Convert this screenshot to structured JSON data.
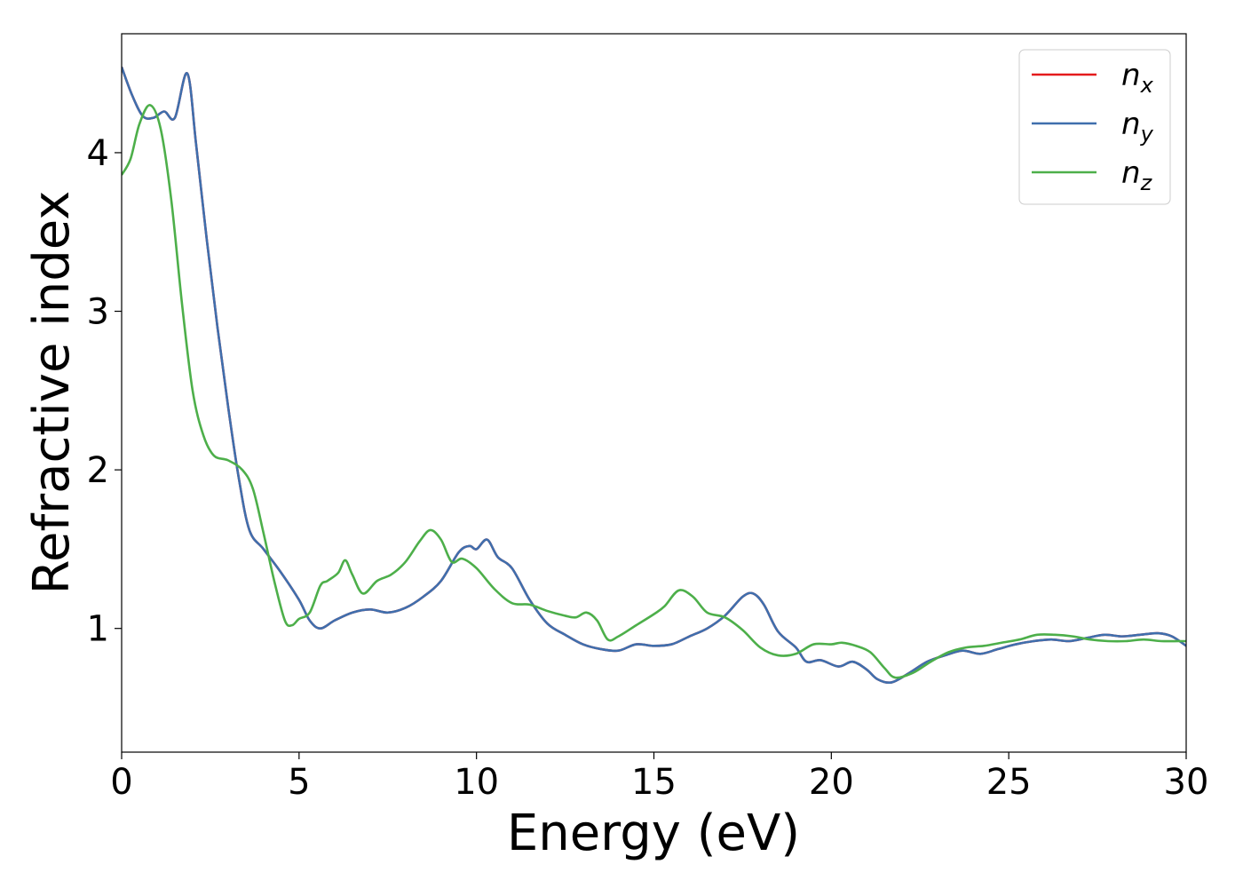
{
  "chart_data": {
    "type": "line",
    "xlabel": "Energy (eV)",
    "ylabel": "Refractive index",
    "xlim": [
      0,
      30
    ],
    "ylim": [
      0.22,
      4.75
    ],
    "xticks": [
      0,
      5,
      10,
      15,
      20,
      25,
      30
    ],
    "yticks": [
      1,
      2,
      3,
      4
    ],
    "grid": false,
    "legend_position": "top-right",
    "series": [
      {
        "name": "n_x",
        "legend_base": "n",
        "legend_sub": "x",
        "color": "#e41a1c",
        "x": [
          0,
          0.3,
          0.6,
          0.9,
          1.2,
          1.5,
          1.85,
          2.1,
          2.4,
          2.7,
          3.0,
          3.3,
          3.6,
          4.0,
          4.5,
          5.0,
          5.3,
          5.6,
          6.0,
          6.5,
          7.0,
          7.5,
          8.0,
          8.5,
          9.0,
          9.5,
          9.8,
          10.0,
          10.3,
          10.6,
          11.0,
          11.5,
          12.0,
          12.5,
          13.0,
          13.5,
          14.0,
          14.5,
          15.0,
          15.5,
          16.0,
          16.5,
          17.0,
          17.5,
          17.8,
          18.1,
          18.5,
          19.0,
          19.3,
          19.7,
          20.2,
          20.6,
          21.0,
          21.3,
          21.7,
          22.2,
          22.7,
          23.2,
          23.7,
          24.2,
          24.7,
          25.2,
          25.7,
          26.2,
          26.7,
          27.2,
          27.7,
          28.2,
          28.7,
          29.2,
          29.6,
          30.0
        ],
        "y": [
          4.54,
          4.36,
          4.23,
          4.22,
          4.26,
          4.22,
          4.5,
          4.05,
          3.45,
          2.9,
          2.4,
          1.95,
          1.62,
          1.5,
          1.35,
          1.18,
          1.05,
          1.0,
          1.05,
          1.1,
          1.12,
          1.1,
          1.13,
          1.2,
          1.3,
          1.48,
          1.52,
          1.5,
          1.56,
          1.45,
          1.38,
          1.18,
          1.03,
          0.96,
          0.9,
          0.87,
          0.86,
          0.9,
          0.89,
          0.9,
          0.95,
          1.0,
          1.08,
          1.2,
          1.22,
          1.15,
          0.98,
          0.88,
          0.79,
          0.8,
          0.76,
          0.79,
          0.74,
          0.68,
          0.66,
          0.72,
          0.79,
          0.83,
          0.86,
          0.84,
          0.87,
          0.9,
          0.92,
          0.93,
          0.92,
          0.94,
          0.96,
          0.95,
          0.96,
          0.97,
          0.95,
          0.89
        ]
      },
      {
        "name": "n_y",
        "legend_base": "n",
        "legend_sub": "y",
        "color": "#3f6fad",
        "x": [
          0,
          0.3,
          0.6,
          0.9,
          1.2,
          1.5,
          1.85,
          2.1,
          2.4,
          2.7,
          3.0,
          3.3,
          3.6,
          4.0,
          4.5,
          5.0,
          5.3,
          5.6,
          6.0,
          6.5,
          7.0,
          7.5,
          8.0,
          8.5,
          9.0,
          9.5,
          9.8,
          10.0,
          10.3,
          10.6,
          11.0,
          11.5,
          12.0,
          12.5,
          13.0,
          13.5,
          14.0,
          14.5,
          15.0,
          15.5,
          16.0,
          16.5,
          17.0,
          17.5,
          17.8,
          18.1,
          18.5,
          19.0,
          19.3,
          19.7,
          20.2,
          20.6,
          21.0,
          21.3,
          21.7,
          22.2,
          22.7,
          23.2,
          23.7,
          24.2,
          24.7,
          25.2,
          25.7,
          26.2,
          26.7,
          27.2,
          27.7,
          28.2,
          28.7,
          29.2,
          29.6,
          30.0
        ],
        "y": [
          4.54,
          4.36,
          4.23,
          4.22,
          4.26,
          4.22,
          4.5,
          4.05,
          3.45,
          2.9,
          2.4,
          1.95,
          1.62,
          1.5,
          1.35,
          1.18,
          1.05,
          1.0,
          1.05,
          1.1,
          1.12,
          1.1,
          1.13,
          1.2,
          1.3,
          1.48,
          1.52,
          1.5,
          1.56,
          1.45,
          1.38,
          1.18,
          1.03,
          0.96,
          0.9,
          0.87,
          0.86,
          0.9,
          0.89,
          0.9,
          0.95,
          1.0,
          1.08,
          1.2,
          1.22,
          1.15,
          0.98,
          0.88,
          0.79,
          0.8,
          0.76,
          0.79,
          0.74,
          0.68,
          0.66,
          0.72,
          0.79,
          0.83,
          0.86,
          0.84,
          0.87,
          0.9,
          0.92,
          0.93,
          0.92,
          0.94,
          0.96,
          0.95,
          0.96,
          0.97,
          0.95,
          0.89
        ]
      },
      {
        "name": "n_z",
        "legend_base": "n",
        "legend_sub": "z",
        "color": "#4daf4a",
        "x": [
          0,
          0.25,
          0.5,
          0.8,
          1.1,
          1.4,
          1.7,
          2.0,
          2.3,
          2.6,
          3.0,
          3.4,
          3.7,
          4.0,
          4.3,
          4.6,
          4.8,
          5.0,
          5.3,
          5.6,
          5.8,
          6.1,
          6.3,
          6.5,
          6.8,
          7.2,
          7.6,
          8.0,
          8.4,
          8.7,
          9.0,
          9.3,
          9.6,
          10.0,
          10.5,
          11.0,
          11.5,
          12.0,
          12.5,
          12.8,
          13.1,
          13.4,
          13.7,
          14.0,
          14.5,
          15.0,
          15.3,
          15.7,
          16.1,
          16.5,
          17.0,
          17.5,
          18.0,
          18.5,
          19.0,
          19.5,
          20.0,
          20.3,
          20.7,
          21.1,
          21.5,
          21.8,
          22.3,
          22.8,
          23.3,
          23.8,
          24.3,
          24.8,
          25.3,
          25.8,
          26.3,
          26.8,
          27.3,
          27.8,
          28.3,
          28.8,
          29.3,
          29.8,
          30.0
        ],
        "y": [
          3.86,
          3.96,
          4.18,
          4.3,
          4.15,
          3.7,
          3.05,
          2.5,
          2.22,
          2.09,
          2.06,
          2.0,
          1.88,
          1.6,
          1.3,
          1.05,
          1.02,
          1.06,
          1.1,
          1.27,
          1.3,
          1.35,
          1.43,
          1.34,
          1.22,
          1.3,
          1.34,
          1.42,
          1.55,
          1.62,
          1.56,
          1.42,
          1.44,
          1.38,
          1.25,
          1.16,
          1.15,
          1.11,
          1.08,
          1.07,
          1.1,
          1.05,
          0.93,
          0.95,
          1.02,
          1.09,
          1.14,
          1.24,
          1.2,
          1.1,
          1.07,
          0.99,
          0.88,
          0.83,
          0.84,
          0.9,
          0.9,
          0.91,
          0.89,
          0.85,
          0.75,
          0.69,
          0.72,
          0.79,
          0.85,
          0.88,
          0.89,
          0.91,
          0.93,
          0.96,
          0.96,
          0.95,
          0.93,
          0.92,
          0.92,
          0.93,
          0.92,
          0.92,
          0.92
        ]
      }
    ]
  }
}
